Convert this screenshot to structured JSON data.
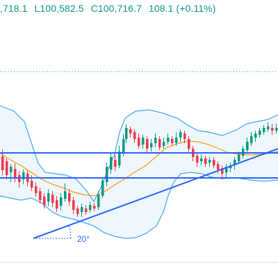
{
  "ohlc": {
    "open": ",718.1",
    "low": "L100,582.5",
    "close": "C100,716.7",
    "change": "108.1 (+0.11%)"
  },
  "colors": {
    "up": "#089981",
    "down": "#f23645",
    "bollinger": "#42a5f5",
    "bollinger_fill": "#e3f2fd",
    "ma": "#ff9800",
    "trendline": "#2962ff",
    "price_dotted": "#089981"
  },
  "drawings": {
    "angle_label": "20°"
  },
  "chart_data": {
    "type": "candlestick",
    "indicators": [
      "Bollinger Bands",
      "Moving Average"
    ],
    "drawn_objects": [
      "horizontal line (upper)",
      "horizontal line (lower)",
      "trend line with angle"
    ],
    "grid": false
  }
}
